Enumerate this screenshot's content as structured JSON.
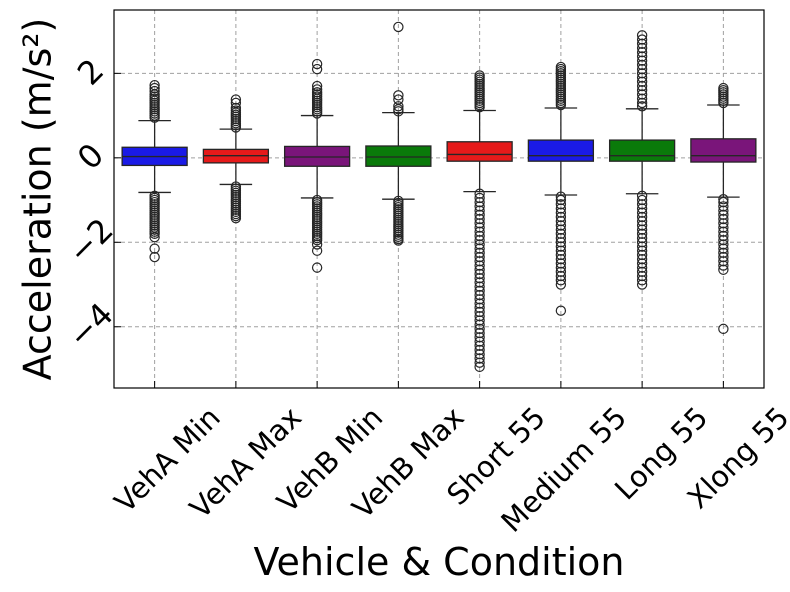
{
  "chart_data": {
    "type": "box",
    "title": "",
    "xlabel": "Vehicle & Condition",
    "ylabel": "Acceleration (m/s²)",
    "ylim": [
      -5.45,
      3.5
    ],
    "yticks": [
      -4,
      -2,
      0,
      2
    ],
    "ytick_labels": [
      "−4",
      "−2",
      "0",
      "2"
    ],
    "grid": true,
    "categories": [
      "VehA Min",
      "VehA Max",
      "VehB Min",
      "VehB Max",
      "Short 55",
      "Medium 55",
      "Long 55",
      "Xlong 55"
    ],
    "colors": [
      "#1a1ae6",
      "#e61a1a",
      "#7a157a",
      "#0a7a0a",
      "#e61a1a",
      "#1a1ae6",
      "#0a7a0a",
      "#7a157a"
    ],
    "series": [
      {
        "name": "VehA Min",
        "q1": -0.18,
        "median": 0.03,
        "q3": 0.25,
        "whisker_low": -0.82,
        "whisker_high": 0.88,
        "outliers_high": [
          0.95,
          1.0,
          1.05,
          1.1,
          1.15,
          1.2,
          1.25,
          1.3,
          1.35,
          1.4,
          1.45,
          1.5,
          1.58,
          1.65,
          1.72
        ],
        "outliers_low": [
          -0.9,
          -0.95,
          -1.0,
          -1.05,
          -1.1,
          -1.15,
          -1.2,
          -1.25,
          -1.3,
          -1.35,
          -1.4,
          -1.45,
          -1.5,
          -1.55,
          -1.6,
          -1.65,
          -1.7,
          -1.75,
          -1.8,
          -1.88,
          -2.15,
          -2.35
        ]
      },
      {
        "name": "VehA Max",
        "q1": -0.12,
        "median": 0.05,
        "q3": 0.2,
        "whisker_low": -0.63,
        "whisker_high": 0.68,
        "outliers_high": [
          0.72,
          0.77,
          0.82,
          0.87,
          0.92,
          0.97,
          1.02,
          1.07,
          1.12,
          1.18,
          1.3,
          1.38
        ],
        "outliers_low": [
          -0.68,
          -0.73,
          -0.78,
          -0.83,
          -0.88,
          -0.93,
          -0.98,
          -1.03,
          -1.08,
          -1.13,
          -1.18,
          -1.23,
          -1.28,
          -1.33,
          -1.38,
          -1.43
        ]
      },
      {
        "name": "VehB Min",
        "q1": -0.2,
        "median": 0.02,
        "q3": 0.27,
        "whisker_low": -0.95,
        "whisker_high": 1.0,
        "outliers_high": [
          1.05,
          1.1,
          1.15,
          1.2,
          1.25,
          1.3,
          1.35,
          1.4,
          1.45,
          1.5,
          1.55,
          1.62,
          1.7,
          2.1,
          2.22
        ],
        "outliers_low": [
          -1.0,
          -1.05,
          -1.1,
          -1.15,
          -1.2,
          -1.25,
          -1.3,
          -1.35,
          -1.4,
          -1.45,
          -1.5,
          -1.55,
          -1.6,
          -1.65,
          -1.7,
          -1.75,
          -1.8,
          -1.85,
          -1.9,
          -1.95,
          -2.05,
          -2.2,
          -2.6
        ]
      },
      {
        "name": "VehB Max",
        "q1": -0.2,
        "median": 0.02,
        "q3": 0.28,
        "whisker_low": -0.98,
        "whisker_high": 1.07,
        "outliers_high": [
          1.1,
          1.15,
          1.22,
          1.38,
          1.48,
          3.1
        ],
        "outliers_low": [
          -1.02,
          -1.07,
          -1.12,
          -1.17,
          -1.22,
          -1.27,
          -1.32,
          -1.37,
          -1.42,
          -1.47,
          -1.52,
          -1.57,
          -1.62,
          -1.67,
          -1.72,
          -1.77,
          -1.82,
          -1.87,
          -1.92,
          -1.96
        ]
      },
      {
        "name": "Short 55",
        "q1": -0.08,
        "median": 0.08,
        "q3": 0.38,
        "whisker_low": -0.8,
        "whisker_high": 1.12,
        "outliers_high": [
          1.2,
          1.25,
          1.3,
          1.35,
          1.4,
          1.45,
          1.5,
          1.55,
          1.6,
          1.65,
          1.7,
          1.75,
          1.8,
          1.85,
          1.9,
          1.95
        ],
        "outliers_low": [
          -0.85,
          -0.95,
          -1.05,
          -1.15,
          -1.25,
          -1.35,
          -1.45,
          -1.55,
          -1.65,
          -1.75,
          -1.85,
          -1.95,
          -2.05,
          -2.15,
          -2.25,
          -2.35,
          -2.45,
          -2.55,
          -2.65,
          -2.75,
          -2.85,
          -2.95,
          -3.05,
          -3.15,
          -3.25,
          -3.35,
          -3.45,
          -3.55,
          -3.65,
          -3.75,
          -3.85,
          -3.95,
          -4.05,
          -4.15,
          -4.25,
          -4.35,
          -4.45,
          -4.55,
          -4.65,
          -4.75,
          -4.85,
          -4.95
        ]
      },
      {
        "name": "Medium 55",
        "q1": -0.08,
        "median": 0.05,
        "q3": 0.42,
        "whisker_low": -0.88,
        "whisker_high": 1.18,
        "outliers_high": [
          1.25,
          1.3,
          1.35,
          1.4,
          1.45,
          1.5,
          1.55,
          1.6,
          1.65,
          1.7,
          1.75,
          1.8,
          1.85,
          1.9,
          1.95,
          2.0,
          2.05,
          2.1,
          2.15
        ],
        "outliers_low": [
          -0.92,
          -1.0,
          -1.1,
          -1.2,
          -1.3,
          -1.4,
          -1.5,
          -1.6,
          -1.7,
          -1.8,
          -1.9,
          -2.0,
          -2.1,
          -2.2,
          -2.3,
          -2.4,
          -2.5,
          -2.6,
          -2.7,
          -2.8,
          -2.9,
          -3.0,
          -3.62
        ]
      },
      {
        "name": "Long 55",
        "q1": -0.08,
        "median": 0.05,
        "q3": 0.42,
        "whisker_low": -0.85,
        "whisker_high": 1.16,
        "outliers_high": [
          1.22,
          1.3,
          1.4,
          1.5,
          1.6,
          1.7,
          1.8,
          1.9,
          2.0,
          2.1,
          2.2,
          2.3,
          2.4,
          2.5,
          2.6,
          2.7,
          2.8,
          2.9
        ],
        "outliers_low": [
          -0.9,
          -1.0,
          -1.1,
          -1.2,
          -1.3,
          -1.4,
          -1.5,
          -1.6,
          -1.7,
          -1.8,
          -1.9,
          -2.0,
          -2.1,
          -2.2,
          -2.3,
          -2.4,
          -2.5,
          -2.6,
          -2.7,
          -2.8,
          -2.9,
          -3.0
        ]
      },
      {
        "name": "Xlong 55",
        "q1": -0.1,
        "median": 0.05,
        "q3": 0.45,
        "whisker_low": -0.93,
        "whisker_high": 1.25,
        "outliers_high": [
          1.3,
          1.35,
          1.4,
          1.45,
          1.5,
          1.55,
          1.6,
          1.65
        ],
        "outliers_low": [
          -0.98,
          -1.05,
          -1.15,
          -1.25,
          -1.35,
          -1.45,
          -1.55,
          -1.65,
          -1.75,
          -1.85,
          -1.95,
          -2.05,
          -2.15,
          -2.25,
          -2.35,
          -2.45,
          -2.55,
          -2.65,
          -4.05
        ]
      }
    ]
  }
}
